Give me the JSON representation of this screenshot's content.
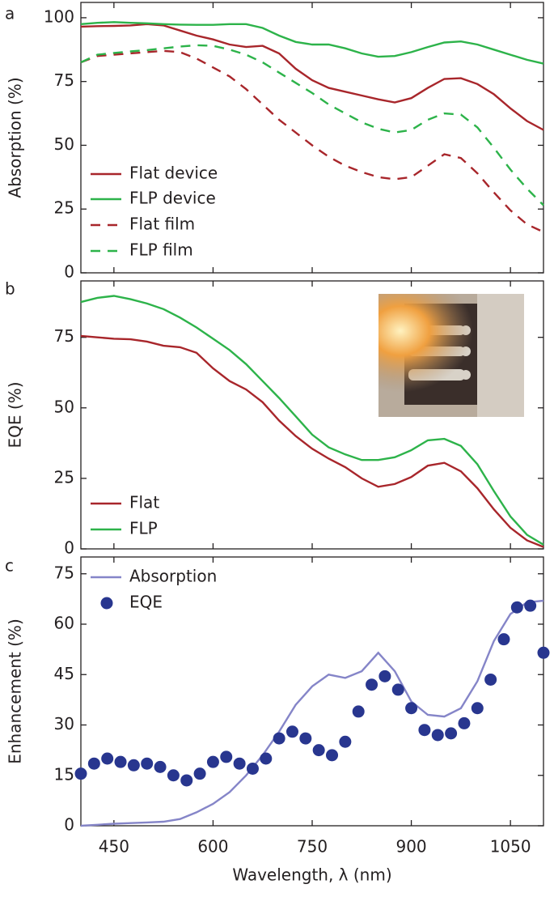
{
  "chart_data": [
    {
      "type": "line",
      "panel_label": "a",
      "y_label": "Absorption (%)",
      "legend": "lower left",
      "x": [
        400,
        425,
        450,
        475,
        500,
        525,
        550,
        575,
        600,
        625,
        650,
        675,
        700,
        725,
        750,
        775,
        800,
        825,
        850,
        875,
        900,
        925,
        950,
        975,
        1000,
        1025,
        1050,
        1075,
        1100
      ],
      "xlim": [
        400,
        1100
      ],
      "ylim": [
        0,
        106
      ],
      "yticks": [
        0,
        25,
        50,
        75,
        100
      ],
      "series": [
        {
          "name": "Flat device",
          "color": "#a8262b",
          "dash": false,
          "values": [
            96.5,
            96.7,
            96.8,
            97,
            97.5,
            97,
            95,
            93,
            91.5,
            89.5,
            88.5,
            89,
            86,
            80,
            75.5,
            72.5,
            71,
            69.5,
            68,
            66.8,
            68.5,
            72.5,
            76,
            76.3,
            74,
            70,
            64.5,
            59.5,
            56
          ]
        },
        {
          "name": "FLP device",
          "color": "#2db34a",
          "dash": false,
          "values": [
            97.5,
            98,
            98.3,
            98,
            97.8,
            97.5,
            97.3,
            97.2,
            97.2,
            97.5,
            97.5,
            96,
            93,
            90.5,
            89.5,
            89.5,
            88,
            86,
            84.7,
            85,
            86.5,
            88.5,
            90.3,
            90.7,
            89.5,
            87.5,
            85.5,
            83.5,
            82
          ]
        },
        {
          "name": "Flat film",
          "color": "#a8262b",
          "dash": true,
          "values": [
            82.5,
            85,
            85.5,
            86,
            86.5,
            87,
            86.5,
            84,
            80.5,
            77,
            72,
            66,
            60,
            55,
            50,
            45.5,
            42,
            39.5,
            37.5,
            36.7,
            37.5,
            42,
            46.5,
            45,
            39,
            31.5,
            24.5,
            19,
            16
          ]
        },
        {
          "name": "FLP film",
          "color": "#2db34a",
          "dash": true,
          "values": [
            82.5,
            85.5,
            86.2,
            86.8,
            87.3,
            88,
            88.7,
            89.2,
            89,
            87.5,
            85.5,
            82.5,
            78.5,
            74.5,
            70.5,
            66,
            62.5,
            59,
            56.5,
            55,
            56,
            60,
            62.5,
            62,
            57,
            49,
            40.5,
            33,
            26.5
          ]
        }
      ]
    },
    {
      "type": "line",
      "panel_label": "b",
      "y_label": "EQE (%)",
      "legend": "lower left",
      "x": [
        400,
        425,
        450,
        475,
        500,
        525,
        550,
        575,
        600,
        625,
        650,
        675,
        700,
        725,
        750,
        775,
        800,
        825,
        850,
        875,
        900,
        925,
        950,
        975,
        1000,
        1025,
        1050,
        1075,
        1100
      ],
      "xlim": [
        400,
        1100
      ],
      "ylim": [
        0,
        95
      ],
      "yticks": [
        0,
        25,
        50,
        75
      ],
      "series": [
        {
          "name": "Flat",
          "color": "#a8262b",
          "dash": false,
          "values": [
            75.5,
            75,
            74.5,
            74.3,
            73.5,
            72,
            71.5,
            69.5,
            64,
            59.5,
            56.5,
            52,
            45.5,
            40,
            35.5,
            32,
            29,
            25,
            22,
            23,
            25.5,
            29.5,
            30.5,
            27.5,
            21.5,
            14,
            7.5,
            3,
            0.7
          ]
        },
        {
          "name": "FLP",
          "color": "#2db34a",
          "dash": false,
          "values": [
            87.5,
            89,
            89.7,
            88.5,
            87,
            85,
            82,
            78.5,
            74.5,
            70.5,
            65.5,
            59.5,
            53.5,
            47,
            40.5,
            36,
            33.5,
            31.5,
            31.5,
            32.5,
            35,
            38.5,
            39,
            36.5,
            30,
            20.5,
            11.5,
            5,
            1.5
          ]
        }
      ]
    },
    {
      "type": "line",
      "panel_label": "c",
      "y_label": "Enhancement (%)",
      "x_label": "Wavelength, λ (nm)",
      "legend": "upper left",
      "xlim": [
        400,
        1100
      ],
      "xticks": [
        450,
        600,
        750,
        900,
        1050
      ],
      "ylim": [
        0,
        80
      ],
      "yticks": [
        0,
        15,
        30,
        45,
        60,
        75
      ],
      "series": [
        {
          "name": "Absorption",
          "type": "line",
          "color": "#8585c8",
          "x": [
            400,
            425,
            450,
            475,
            500,
            525,
            550,
            575,
            600,
            625,
            650,
            675,
            700,
            725,
            750,
            775,
            800,
            825,
            850,
            875,
            900,
            925,
            950,
            975,
            1000,
            1025,
            1050,
            1075,
            1100
          ],
          "values": [
            0,
            0.3,
            0.6,
            0.8,
            1,
            1.2,
            2,
            4,
            6.5,
            10,
            15,
            21,
            28,
            36,
            41.5,
            45,
            44,
            46,
            51.5,
            46,
            37,
            33,
            32.5,
            35,
            43,
            55,
            63,
            66.5,
            67
          ]
        },
        {
          "name": "EQE",
          "type": "scatter",
          "color": "#28368f",
          "x": [
            400,
            420,
            440,
            460,
            480,
            500,
            520,
            540,
            560,
            580,
            600,
            620,
            640,
            660,
            680,
            700,
            720,
            740,
            760,
            780,
            800,
            820,
            840,
            860,
            880,
            900,
            920,
            940,
            960,
            980,
            1000,
            1020,
            1040,
            1060,
            1080,
            1100
          ],
          "values": [
            15.5,
            18.5,
            20,
            19,
            18,
            18.5,
            17.5,
            15,
            13.5,
            15.5,
            19,
            20.5,
            18.5,
            17,
            20,
            26,
            28,
            26,
            22.5,
            21,
            25,
            34,
            42,
            44.5,
            40.5,
            35,
            28.5,
            27,
            27.5,
            30.5,
            35,
            43.5,
            55.5,
            65,
            65.5,
            51.5
          ]
        }
      ]
    }
  ]
}
